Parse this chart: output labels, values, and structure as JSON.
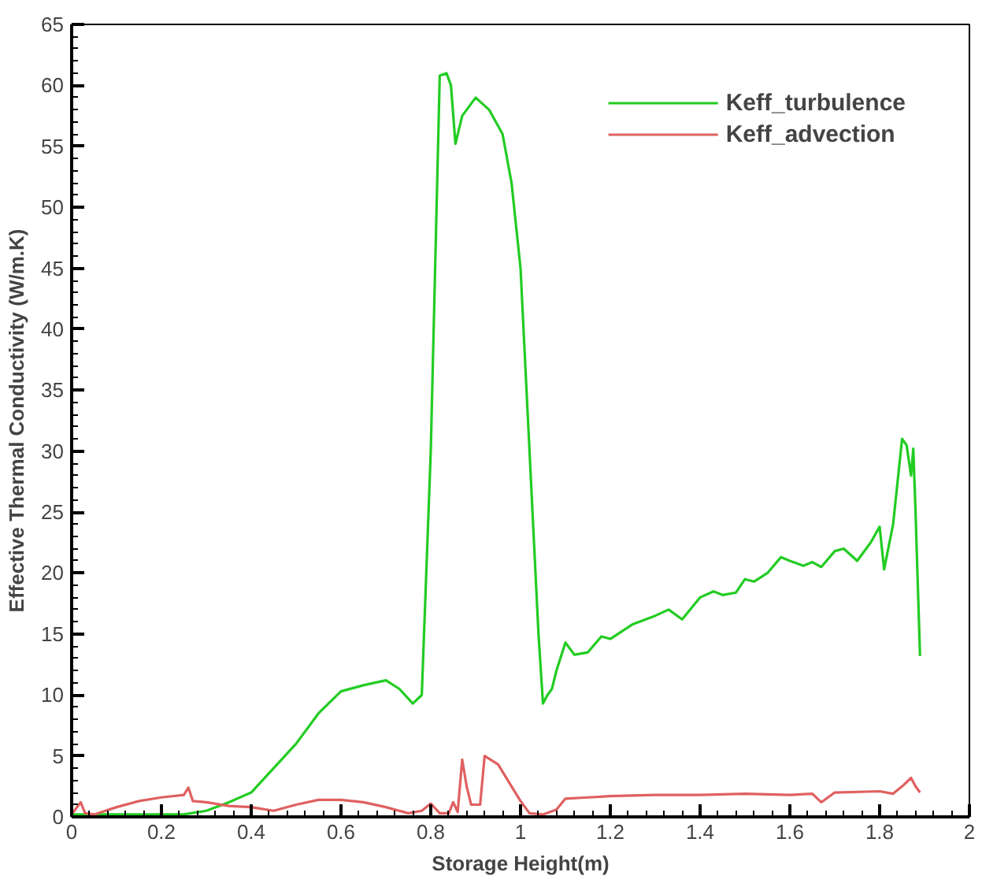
{
  "chart_data": {
    "type": "line",
    "xlabel": "Storage Height(m)",
    "ylabel": "Effective Thermal Conductivity (W/m.K)",
    "xlim": [
      0,
      2
    ],
    "ylim": [
      0,
      65
    ],
    "xticks": [
      0,
      0.2,
      0.4,
      0.6,
      0.8,
      1,
      1.2,
      1.4,
      1.6,
      1.8,
      2
    ],
    "yticks": [
      0,
      5,
      10,
      15,
      20,
      25,
      30,
      35,
      40,
      45,
      50,
      55,
      60,
      65
    ],
    "grid": false,
    "legend": "top right",
    "marker": "none",
    "line_style": "solid",
    "series": [
      {
        "name": "Keff_turbulence",
        "color": "#22cc22",
        "x": [
          0,
          0.1,
          0.2,
          0.25,
          0.3,
          0.35,
          0.4,
          0.45,
          0.5,
          0.55,
          0.6,
          0.65,
          0.7,
          0.73,
          0.76,
          0.78,
          0.8,
          0.82,
          0.835,
          0.845,
          0.855,
          0.87,
          0.9,
          0.93,
          0.96,
          0.98,
          1.0,
          1.02,
          1.04,
          1.05,
          1.06,
          1.07,
          1.08,
          1.1,
          1.12,
          1.15,
          1.18,
          1.2,
          1.25,
          1.3,
          1.33,
          1.36,
          1.4,
          1.43,
          1.45,
          1.48,
          1.5,
          1.52,
          1.55,
          1.58,
          1.6,
          1.63,
          1.65,
          1.67,
          1.7,
          1.72,
          1.75,
          1.78,
          1.8,
          1.81,
          1.83,
          1.85,
          1.86,
          1.87,
          1.875,
          1.88,
          1.89
        ],
        "values": [
          0.2,
          0.2,
          0.2,
          0.2,
          0.5,
          1.2,
          2,
          4,
          6,
          8.5,
          10.3,
          10.8,
          11.2,
          10.5,
          9.3,
          10,
          30,
          60.8,
          61,
          60,
          55.2,
          57.5,
          59,
          58,
          56,
          52,
          45,
          30,
          15,
          9.3,
          10,
          10.5,
          12,
          14.3,
          13.3,
          13.5,
          14.8,
          14.6,
          15.8,
          16.5,
          17,
          16.2,
          18,
          18.5,
          18.2,
          18.4,
          19.5,
          19.3,
          20,
          21.3,
          21,
          20.6,
          20.9,
          20.5,
          21.8,
          22,
          21,
          22.5,
          23.8,
          20.3,
          24,
          31,
          30.5,
          28,
          30.2,
          25,
          13.2
        ]
      },
      {
        "name": "Keff_advection",
        "color": "#e06060",
        "x": [
          0,
          0.02,
          0.03,
          0.05,
          0.1,
          0.15,
          0.2,
          0.25,
          0.26,
          0.27,
          0.3,
          0.35,
          0.4,
          0.45,
          0.5,
          0.55,
          0.6,
          0.65,
          0.7,
          0.75,
          0.78,
          0.8,
          0.82,
          0.84,
          0.85,
          0.86,
          0.87,
          0.88,
          0.89,
          0.91,
          0.92,
          0.95,
          0.98,
          1.0,
          1.02,
          1.05,
          1.08,
          1.1,
          1.15,
          1.2,
          1.3,
          1.4,
          1.5,
          1.6,
          1.65,
          1.67,
          1.7,
          1.8,
          1.83,
          1.85,
          1.87,
          1.88,
          1.89
        ],
        "values": [
          0.2,
          1.2,
          0.3,
          0.2,
          0.8,
          1.3,
          1.6,
          1.8,
          2.4,
          1.3,
          1.2,
          0.9,
          0.8,
          0.5,
          1.0,
          1.4,
          1.4,
          1.2,
          0.8,
          0.3,
          0.5,
          1.1,
          0.3,
          0.3,
          1.2,
          0.4,
          4.7,
          2.5,
          1.0,
          1.0,
          5.0,
          4.3,
          2.5,
          1.3,
          0.3,
          0.2,
          0.6,
          1.5,
          1.6,
          1.7,
          1.8,
          1.8,
          1.9,
          1.8,
          1.9,
          1.2,
          2.0,
          2.1,
          1.9,
          2.5,
          3.2,
          2.5,
          2.0
        ]
      }
    ]
  }
}
